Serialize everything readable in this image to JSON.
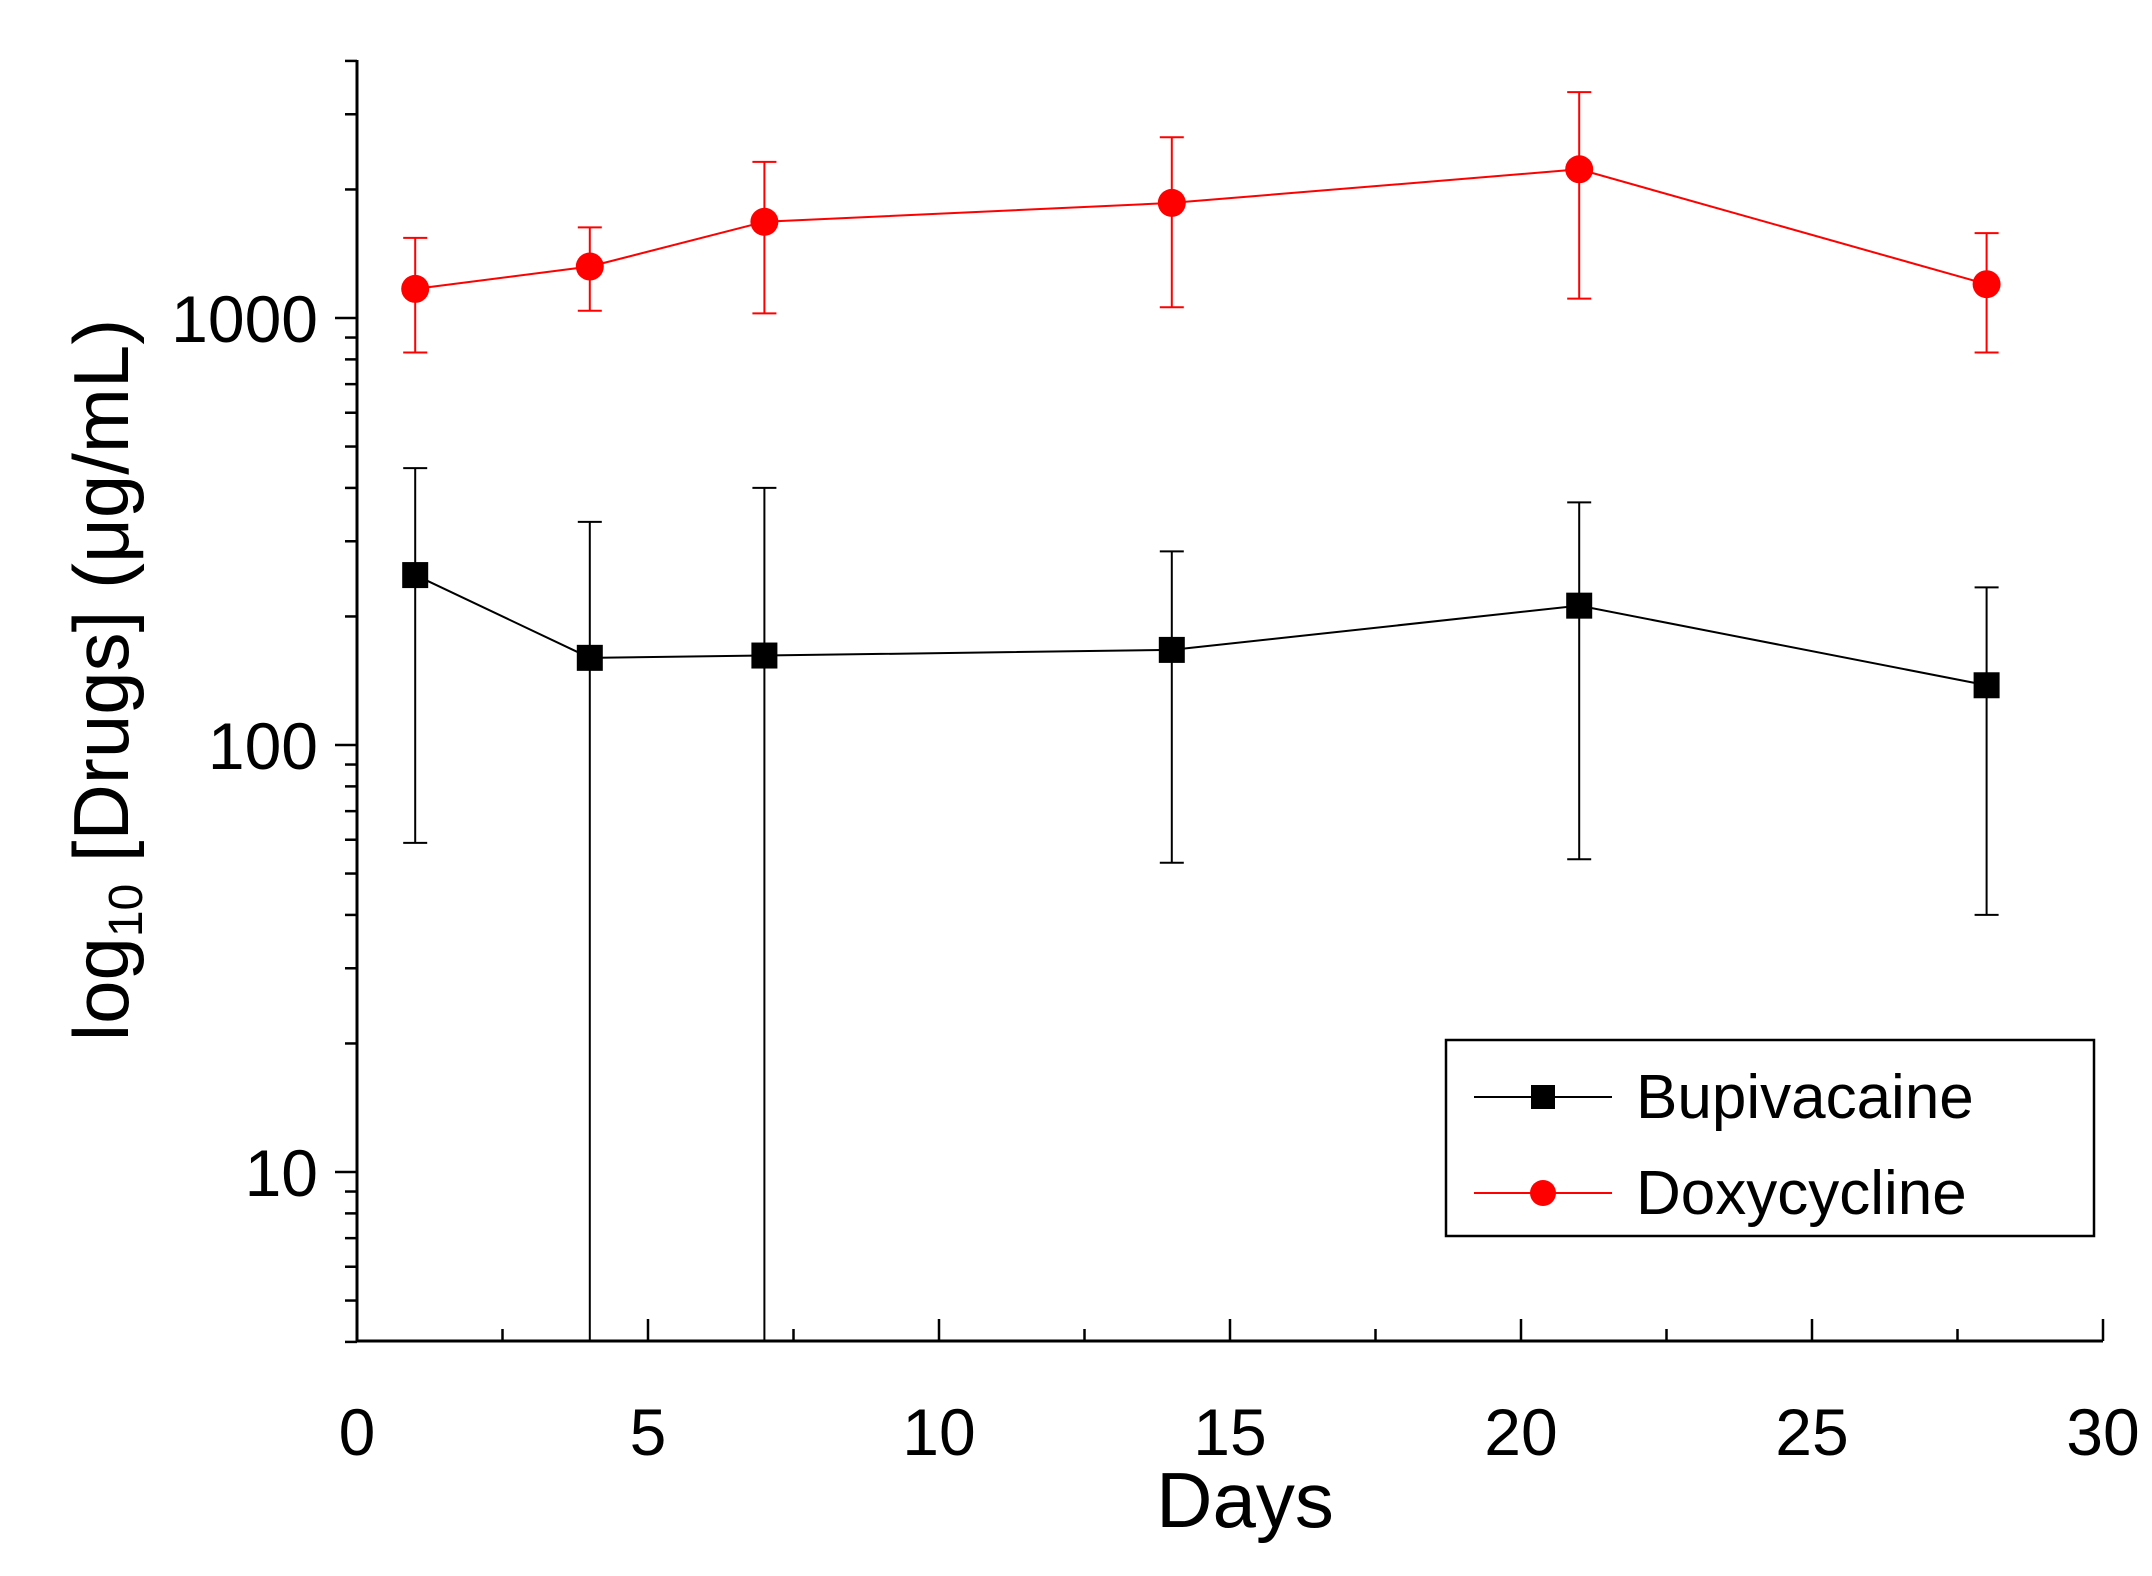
{
  "chart_data": {
    "type": "line",
    "title": "",
    "xlabel": "Days",
    "ylabel_main": "log",
    "ylabel_sub": "10",
    "ylabel_rest": " [Drugs] (μg/mL)",
    "x_scale": "linear",
    "y_scale": "log",
    "xlim": [
      0,
      30
    ],
    "ylim": [
      4,
      4000
    ],
    "x_ticks": [
      0,
      5,
      10,
      15,
      20,
      25,
      30
    ],
    "x_tick_labels": [
      "0",
      "5",
      "10",
      "15",
      "20",
      "25",
      "30"
    ],
    "y_ticks": [
      10,
      100,
      1000
    ],
    "y_tick_labels": [
      "10",
      "100",
      "1000"
    ],
    "grid": false,
    "legend_position": "bottom-right",
    "series": [
      {
        "name": "Bupivacaine",
        "color": "#000000",
        "marker": "square",
        "x": [
          1,
          4,
          7,
          14,
          21,
          28
        ],
        "y": [
          250,
          160,
          162,
          167,
          212,
          138
        ],
        "y_err_low": [
          59,
          0,
          0,
          53,
          54,
          40
        ],
        "y_err_high": [
          445,
          333,
          400,
          284,
          370,
          234
        ]
      },
      {
        "name": "Doxycycline",
        "color": "#ff0000",
        "marker": "circle",
        "x": [
          1,
          4,
          7,
          14,
          21,
          28
        ],
        "y": [
          1170,
          1320,
          1680,
          1860,
          2230,
          1200
        ],
        "y_err_low": [
          830,
          1040,
          1025,
          1060,
          1110,
          830
        ],
        "y_err_high": [
          1540,
          1630,
          2320,
          2650,
          3380,
          1580
        ]
      }
    ]
  }
}
